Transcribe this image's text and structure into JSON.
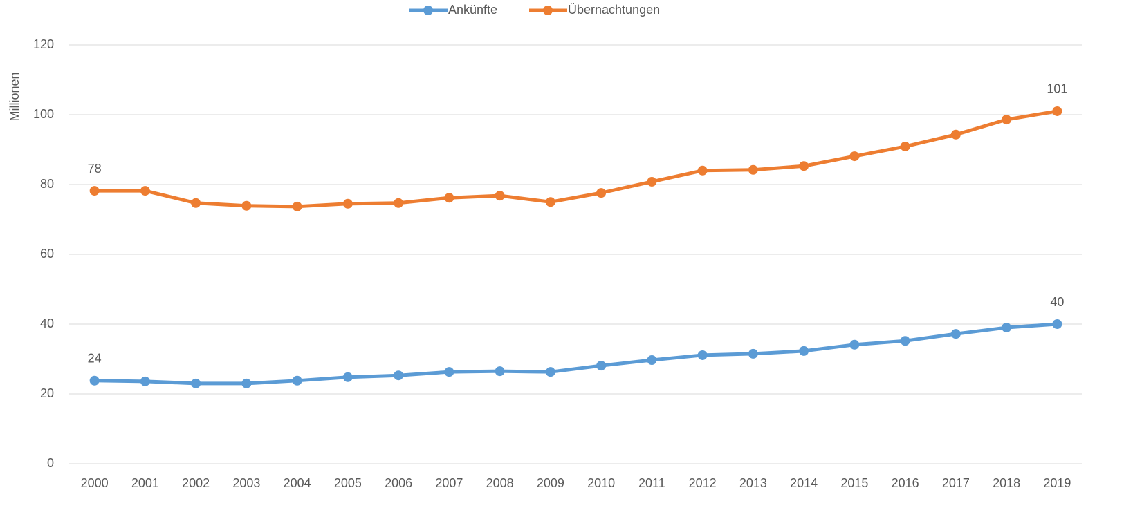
{
  "chart_data": {
    "type": "line",
    "y_label": "Millionen",
    "categories": [
      "2000",
      "2001",
      "2002",
      "2003",
      "2004",
      "2005",
      "2006",
      "2007",
      "2008",
      "2009",
      "2010",
      "2011",
      "2012",
      "2013",
      "2014",
      "2015",
      "2016",
      "2017",
      "2018",
      "2019"
    ],
    "series": [
      {
        "name": "Ankünfte",
        "color": "#5b9bd5",
        "values": [
          23.8,
          23.6,
          23.0,
          23.0,
          23.8,
          24.8,
          25.3,
          26.3,
          26.5,
          26.3,
          28.1,
          29.7,
          31.1,
          31.5,
          32.3,
          34.1,
          35.2,
          37.2,
          39.0,
          40.0
        ],
        "value_labels": [
          "24",
          null,
          null,
          null,
          null,
          null,
          null,
          null,
          null,
          null,
          null,
          null,
          null,
          null,
          null,
          null,
          null,
          null,
          null,
          "40"
        ]
      },
      {
        "name": "Übernachtungen",
        "color": "#ed7d31",
        "values": [
          78.2,
          78.2,
          74.7,
          73.9,
          73.7,
          74.5,
          74.7,
          76.2,
          76.8,
          75.0,
          77.6,
          80.8,
          84.0,
          84.2,
          85.3,
          88.1,
          90.9,
          94.3,
          98.6,
          101.0
        ],
        "value_labels": [
          "78",
          null,
          null,
          null,
          null,
          null,
          null,
          null,
          null,
          null,
          null,
          null,
          null,
          null,
          null,
          null,
          null,
          null,
          null,
          "101"
        ]
      }
    ],
    "ylim": [
      0,
      120
    ],
    "yticks": [
      0,
      20,
      40,
      60,
      80,
      100,
      120
    ],
    "grid": true,
    "legend": "top"
  }
}
